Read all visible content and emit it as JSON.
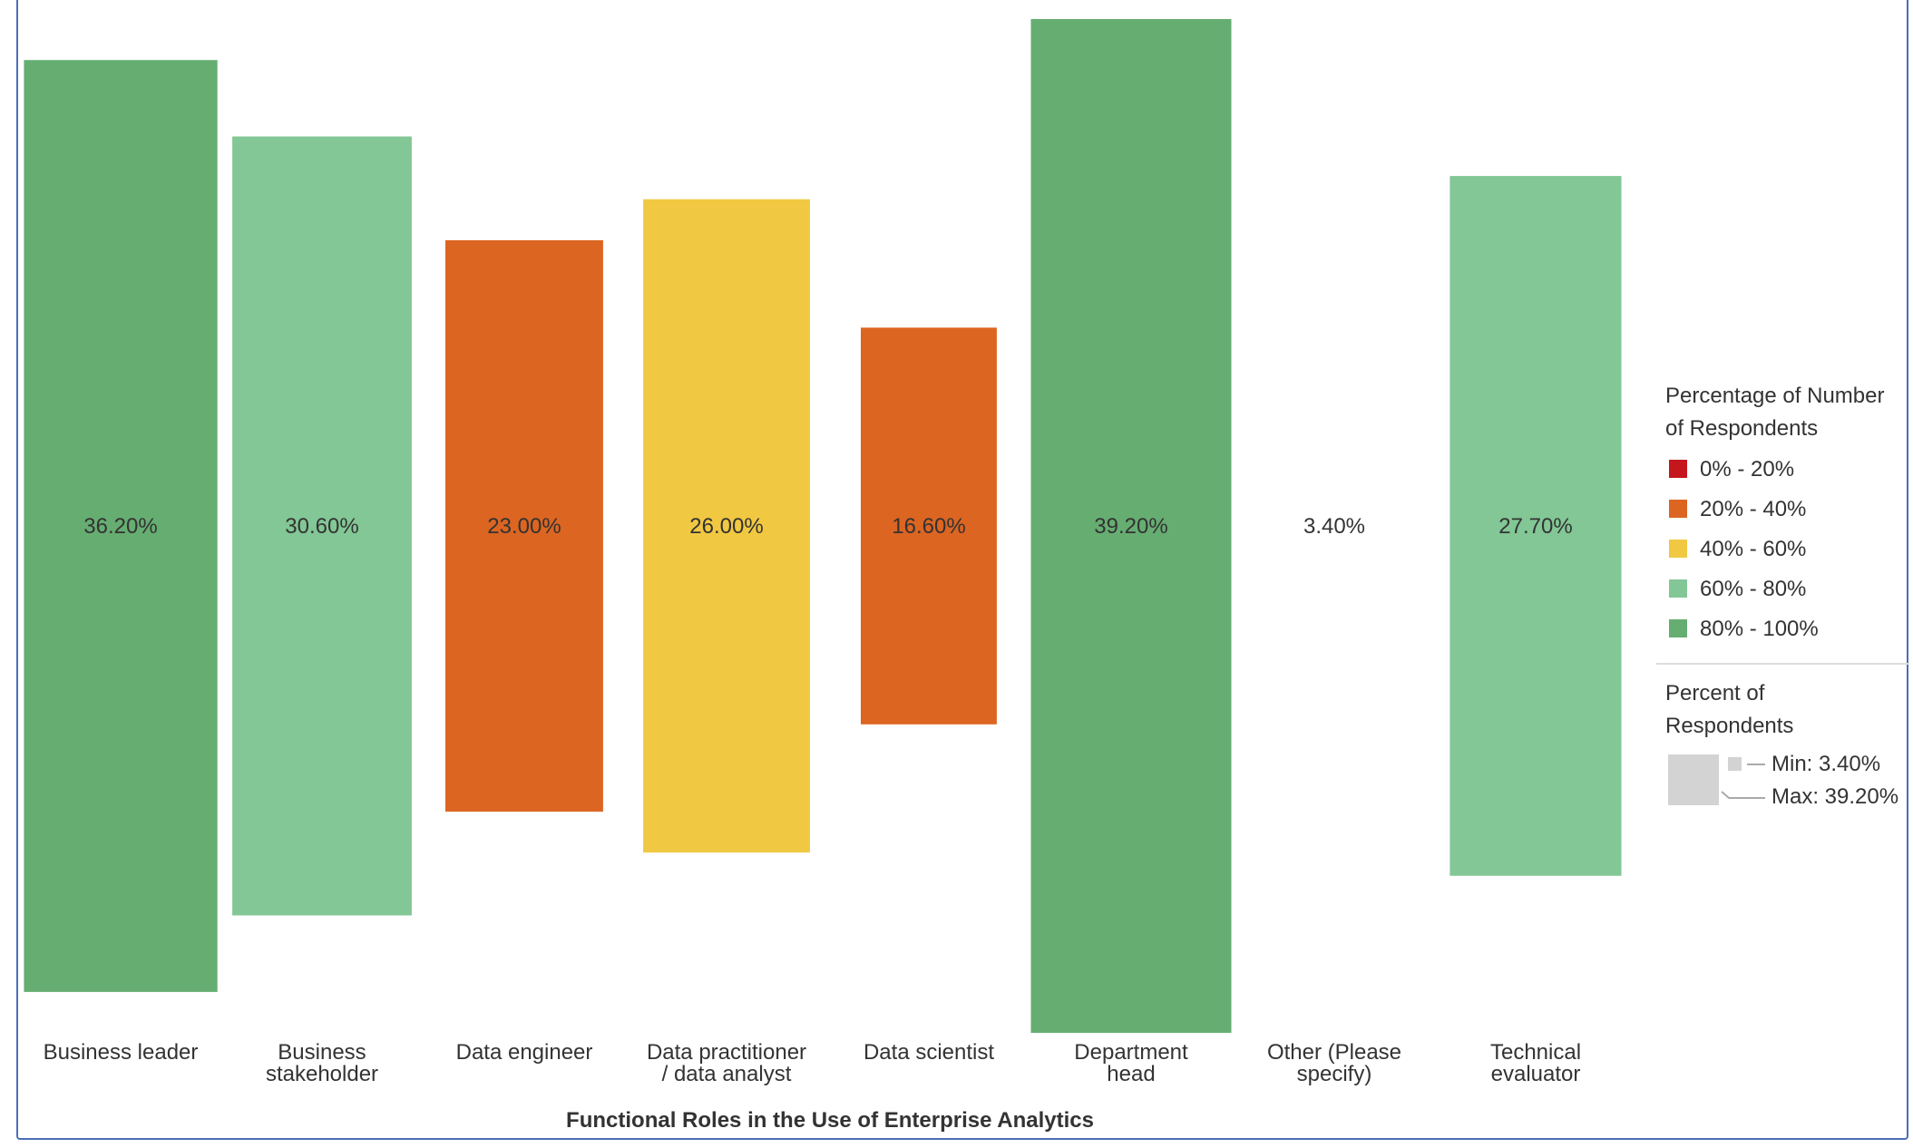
{
  "chart_data": {
    "type": "bar",
    "xlabel": "Functional Roles in the Use of Enterprise Analytics",
    "categories": [
      [
        "Business leader"
      ],
      [
        "Business",
        "stakeholder"
      ],
      [
        "Data engineer"
      ],
      [
        "Data practitioner",
        "/ data analyst"
      ],
      [
        "Data scientist"
      ],
      [
        "Department",
        "head"
      ],
      [
        "Other (Please",
        "specify)"
      ],
      [
        "Technical",
        "evaluator"
      ]
    ],
    "values": [
      36.2,
      30.6,
      23.0,
      26.0,
      16.6,
      39.2,
      3.4,
      27.7
    ],
    "value_labels": [
      "36.20%",
      "30.60%",
      "23.00%",
      "26.00%",
      "16.60%",
      "39.20%",
      "3.40%",
      "27.70%"
    ],
    "bar_colors": [
      "#66ad72",
      "#82c795",
      "#dc6521",
      "#f1c842",
      "#dc6521",
      "#66ad72",
      "#82c795",
      "#82c795"
    ],
    "legend_color": {
      "title_lines": [
        "Percentage of Number",
        "of Respondents"
      ],
      "items": [
        {
          "label": "0% - 20%",
          "color": "#c4161c"
        },
        {
          "label": "20% - 40%",
          "color": "#dc6521"
        },
        {
          "label": "40% - 60%",
          "color": "#f1c842"
        },
        {
          "label": "60% - 80%",
          "color": "#82c795"
        },
        {
          "label": "80% - 100%",
          "color": "#66ad72"
        }
      ]
    },
    "legend_size": {
      "title_lines": [
        "Percent of",
        "Respondents"
      ],
      "min_label": "Min: 3.40%",
      "max_label": "Max: 39.20%",
      "min": 3.4,
      "max": 39.2
    }
  }
}
